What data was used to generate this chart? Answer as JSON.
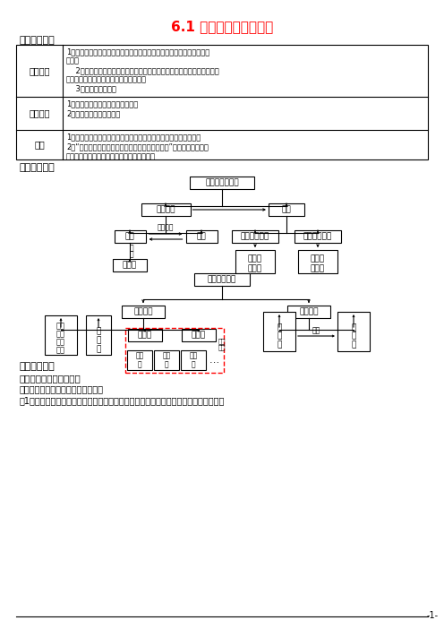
{
  "title": "6.1 生态系统的营养结构",
  "section1": "一、目标导航",
  "section2": "二、知识网络",
  "section3": "三、导学过程",
  "section3_sub": "一、生态系统的组成成分",
  "section3_text": "阅读课本，小组讨论回答下列问题：",
  "section3_q": "（1）某动物园里饱养着多种动物，同时也栽培了许多植物，该动物园是否属于一个生态",
  "bg_color": "#ffffff",
  "text_color": "#000000",
  "title_color": "#ff0000",
  "border_color": "#000000",
  "dashed_color": "#ff0000"
}
